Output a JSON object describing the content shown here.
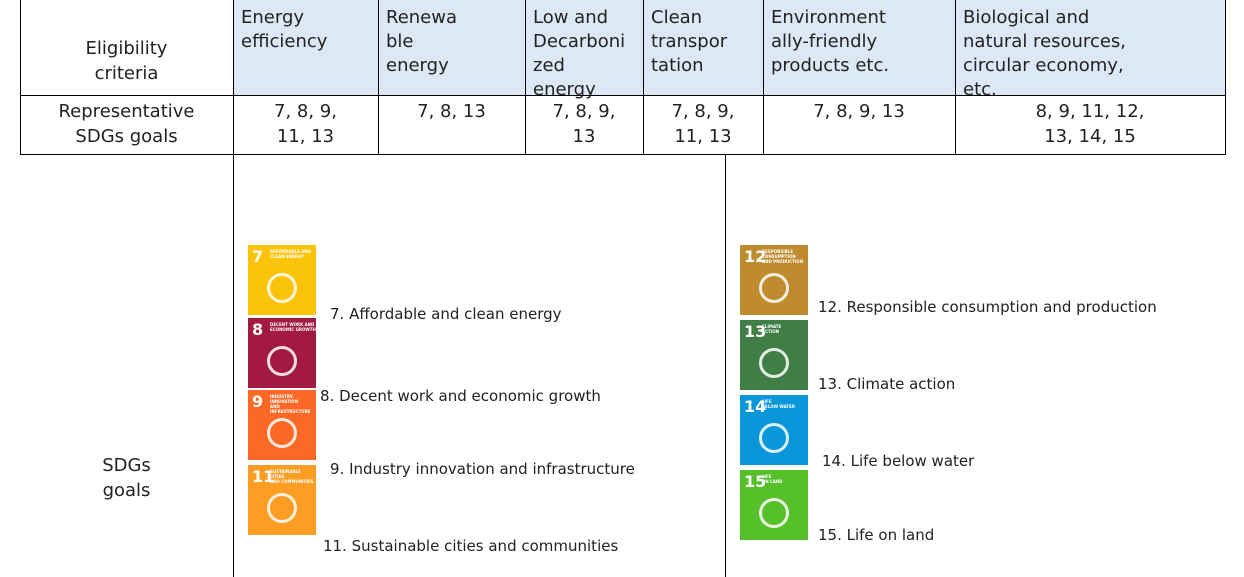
{
  "table": {
    "corner": "Eligibility\ncriteria",
    "headers": [
      "Energy\nefficiency",
      "Renewa\nble\nenergy",
      "Low and\nDecarboni\nzed\nenergy",
      "Clean\ntranspor\ntation",
      "Environment\nally-friendly\nproducts etc.",
      "Biological and\nnatural resources,\ncircular economy,\netc."
    ],
    "row_label": "Representative\nSDGs  goals",
    "row_values": [
      "7, 8, 9,\n11, 13",
      "7, 8, 13",
      "7, 8, 9,\n13",
      "7, 8, 9,\n11, 13",
      "7, 8, 9, 13",
      "8, 9, 11, 12,\n13, 14, 15"
    ],
    "goals_label": "SDGs\ngoals",
    "goals": [
      {
        "number": "7",
        "icon_text": "AFFORDABLE AND\nCLEAN ENERGY",
        "caption": "7. Affordable and clean energy",
        "color": "#FCC30B"
      },
      {
        "number": "8",
        "icon_text": "DECENT WORK AND\nECONOMIC GROWTH",
        "caption": "8. Decent work and economic growth",
        "color": "#A21942"
      },
      {
        "number": "9",
        "icon_text": "INDUSTRY, INNOVATION\nAND INFRASTRUCTURE",
        "caption": "9. Industry innovation and infrastructure",
        "color": "#FD6925"
      },
      {
        "number": "11",
        "icon_text": "SUSTAINABLE CITIES\nAND COMMUNITIES",
        "caption": "11. Sustainable cities and communities",
        "color": "#FD9D24"
      },
      {
        "number": "12",
        "icon_text": "RESPONSIBLE\nCONSUMPTION\nAND PRODUCTION",
        "caption": "12. Responsible consumption and production",
        "color": "#BF8B2E"
      },
      {
        "number": "13",
        "icon_text": "CLIMATE\nACTION",
        "caption": "13. Climate action",
        "color": "#3F7E44"
      },
      {
        "number": "14",
        "icon_text": "LIFE\nBELOW WATER",
        "caption": "14. Life below water",
        "color": "#0A97D9"
      },
      {
        "number": "15",
        "icon_text": "LIFE\nON LAND",
        "caption": "15. Life on land",
        "color": "#56C02B"
      }
    ]
  }
}
